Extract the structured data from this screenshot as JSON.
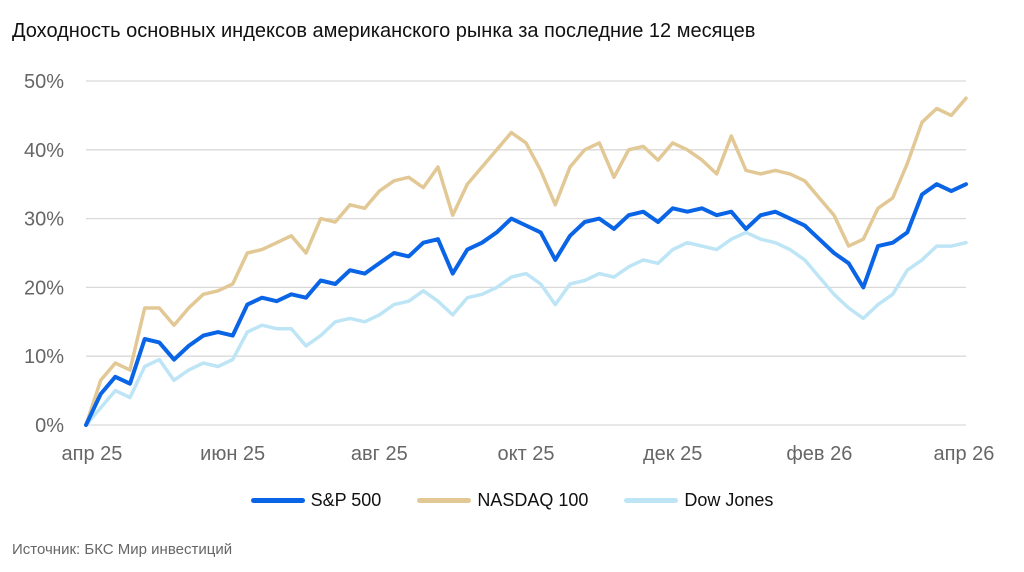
{
  "chart_data": {
    "type": "line",
    "title": "Доходность основных индексов американского рынка за последние 12 месяцев",
    "xlabel": "",
    "ylabel": "",
    "x_tick_labels": [
      "апр 25",
      "июн 25",
      "авг 25",
      "окт 25",
      "дек 25",
      "фев 26",
      "апр 26"
    ],
    "y_tick_labels": [
      "0%",
      "10%",
      "20%",
      "30%",
      "40%",
      "50%"
    ],
    "ylim": [
      0,
      50
    ],
    "xlim": [
      0,
      12
    ],
    "grid": true,
    "legend_position": "bottom-center",
    "x_unit": "months since апр 25",
    "x": [
      0,
      0.2,
      0.4,
      0.6,
      0.8,
      1.0,
      1.2,
      1.4,
      1.6,
      1.8,
      2.0,
      2.2,
      2.4,
      2.6,
      2.8,
      3.0,
      3.2,
      3.4,
      3.6,
      3.8,
      4.0,
      4.2,
      4.4,
      4.6,
      4.8,
      5.0,
      5.2,
      5.4,
      5.6,
      5.8,
      6.0,
      6.2,
      6.4,
      6.6,
      6.8,
      7.0,
      7.2,
      7.4,
      7.6,
      7.8,
      8.0,
      8.2,
      8.4,
      8.6,
      8.8,
      9.0,
      9.2,
      9.4,
      9.6,
      9.8,
      10.0,
      10.2,
      10.4,
      10.6,
      10.8,
      11.0,
      11.2,
      11.4,
      11.6,
      11.8,
      12.0
    ],
    "series": [
      {
        "name": "S&P 500",
        "color": "#0a64e6",
        "values": [
          0,
          4.5,
          7.0,
          6.0,
          12.5,
          12.0,
          9.5,
          11.5,
          13.0,
          13.5,
          13.0,
          17.5,
          18.5,
          18.0,
          19.0,
          18.5,
          21.0,
          20.5,
          22.5,
          22.0,
          23.5,
          25.0,
          24.5,
          26.5,
          27.0,
          22.0,
          25.5,
          26.5,
          28.0,
          30.0,
          29.0,
          28.0,
          24.0,
          27.5,
          29.5,
          30.0,
          28.5,
          30.5,
          31.0,
          29.5,
          31.5,
          31.0,
          31.5,
          30.5,
          31.0,
          28.5,
          30.5,
          31.0,
          30.0,
          29.0,
          27.0,
          25.0,
          23.5,
          20.0,
          26.0,
          26.5,
          28.0,
          33.5,
          35.0,
          34.0,
          35.0
        ]
      },
      {
        "name": "NASDAQ 100",
        "color": "#e2c895",
        "values": [
          0,
          6.5,
          9.0,
          8.0,
          17.0,
          17.0,
          14.5,
          17.0,
          19.0,
          19.5,
          20.5,
          25.0,
          25.5,
          26.5,
          27.5,
          25.0,
          30.0,
          29.5,
          32.0,
          31.5,
          34.0,
          35.5,
          36.0,
          34.5,
          37.5,
          30.5,
          35.0,
          37.5,
          40.0,
          42.5,
          41.0,
          37.0,
          32.0,
          37.5,
          40.0,
          41.0,
          36.0,
          40.0,
          40.5,
          38.5,
          41.0,
          40.0,
          38.5,
          36.5,
          42.0,
          37.0,
          36.5,
          37.0,
          36.5,
          35.5,
          33.0,
          30.5,
          26.0,
          27.0,
          31.5,
          33.0,
          38.0,
          44.0,
          46.0,
          45.0,
          47.5
        ]
      },
      {
        "name": "Dow Jones",
        "color": "#bde5f5",
        "values": [
          0,
          2.5,
          5.0,
          4.0,
          8.5,
          9.5,
          6.5,
          8.0,
          9.0,
          8.5,
          9.5,
          13.5,
          14.5,
          14.0,
          14.0,
          11.5,
          13.0,
          15.0,
          15.5,
          15.0,
          16.0,
          17.5,
          18.0,
          19.5,
          18.0,
          16.0,
          18.5,
          19.0,
          20.0,
          21.5,
          22.0,
          20.5,
          17.5,
          20.5,
          21.0,
          22.0,
          21.5,
          23.0,
          24.0,
          23.5,
          25.5,
          26.5,
          26.0,
          25.5,
          27.0,
          28.0,
          27.0,
          26.5,
          25.5,
          24.0,
          21.5,
          19.0,
          17.0,
          15.5,
          17.5,
          19.0,
          22.5,
          24.0,
          26.0,
          26.0,
          26.5
        ]
      }
    ]
  },
  "legend": [
    "S&P 500",
    "NASDAQ 100",
    "Dow Jones"
  ],
  "source": "Источник: БКС Мир инвестиций"
}
